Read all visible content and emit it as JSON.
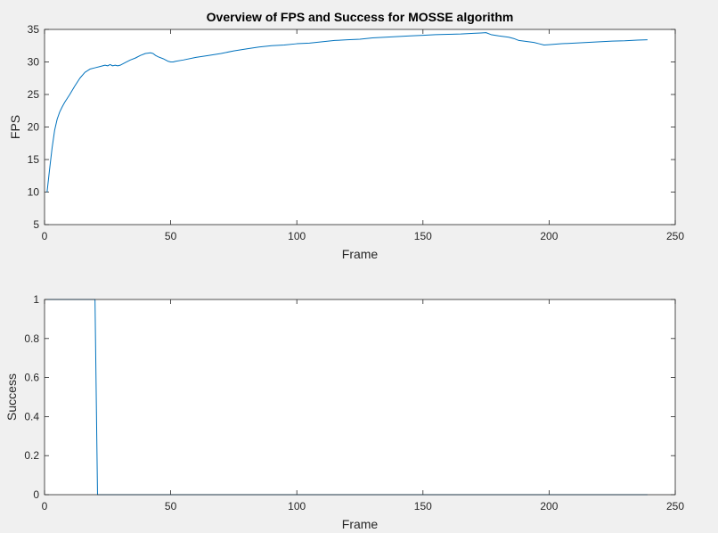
{
  "chart_data": [
    {
      "type": "line",
      "title": "Overview of FPS and Success for MOSSE algorithm",
      "xlabel": "Frame",
      "ylabel": "FPS",
      "xlim": [
        0,
        250
      ],
      "ylim": [
        5,
        35
      ],
      "xticks": [
        "0",
        "50",
        "100",
        "150",
        "200",
        "250"
      ],
      "yticks": [
        "5",
        "10",
        "15",
        "20",
        "25",
        "30",
        "35"
      ],
      "grid": false,
      "series": [
        {
          "color": "#0072bd",
          "x": [
            1,
            2,
            3,
            4,
            5,
            6,
            7,
            8,
            10,
            12,
            14,
            16,
            18,
            20,
            22,
            24,
            25,
            26,
            27,
            28,
            29,
            30,
            32,
            34,
            36,
            38,
            40,
            42,
            43,
            44,
            45,
            47,
            49,
            50,
            51,
            52,
            55,
            60,
            65,
            70,
            75,
            80,
            85,
            90,
            95,
            100,
            105,
            110,
            115,
            120,
            125,
            130,
            135,
            140,
            145,
            150,
            155,
            160,
            165,
            170,
            173,
            175,
            177,
            180,
            182,
            184,
            186,
            188,
            190,
            192,
            194,
            196,
            198,
            200,
            205,
            210,
            215,
            220,
            225,
            230,
            235,
            239
          ],
          "y": [
            10.0,
            13.5,
            16.8,
            19.5,
            21.2,
            22.3,
            23.1,
            23.8,
            25.0,
            26.3,
            27.5,
            28.4,
            28.9,
            29.1,
            29.3,
            29.5,
            29.4,
            29.6,
            29.4,
            29.5,
            29.4,
            29.5,
            29.9,
            30.3,
            30.6,
            31.0,
            31.3,
            31.4,
            31.3,
            31.0,
            30.8,
            30.5,
            30.1,
            30.0,
            30.0,
            30.1,
            30.3,
            30.7,
            31.0,
            31.3,
            31.7,
            32.0,
            32.3,
            32.5,
            32.6,
            32.8,
            32.9,
            33.1,
            33.3,
            33.4,
            33.5,
            33.7,
            33.8,
            33.9,
            34.0,
            34.1,
            34.2,
            34.25,
            34.3,
            34.4,
            34.45,
            34.5,
            34.2,
            34.0,
            33.9,
            33.8,
            33.6,
            33.3,
            33.2,
            33.1,
            33.0,
            32.8,
            32.6,
            32.65,
            32.8,
            32.9,
            33.0,
            33.1,
            33.2,
            33.25,
            33.35,
            33.4
          ]
        }
      ]
    },
    {
      "type": "line",
      "title": "",
      "xlabel": "Frame",
      "ylabel": "Success",
      "xlim": [
        0,
        250
      ],
      "ylim": [
        0,
        1
      ],
      "xticks": [
        "0",
        "50",
        "100",
        "150",
        "200",
        "250"
      ],
      "yticks": [
        "0",
        "0.2",
        "0.4",
        "0.6",
        "0.8",
        "1"
      ],
      "grid": false,
      "series": [
        {
          "color": "#0072bd",
          "x": [
            1,
            20,
            21,
            239
          ],
          "y": [
            1,
            1,
            0,
            0
          ]
        }
      ]
    }
  ]
}
